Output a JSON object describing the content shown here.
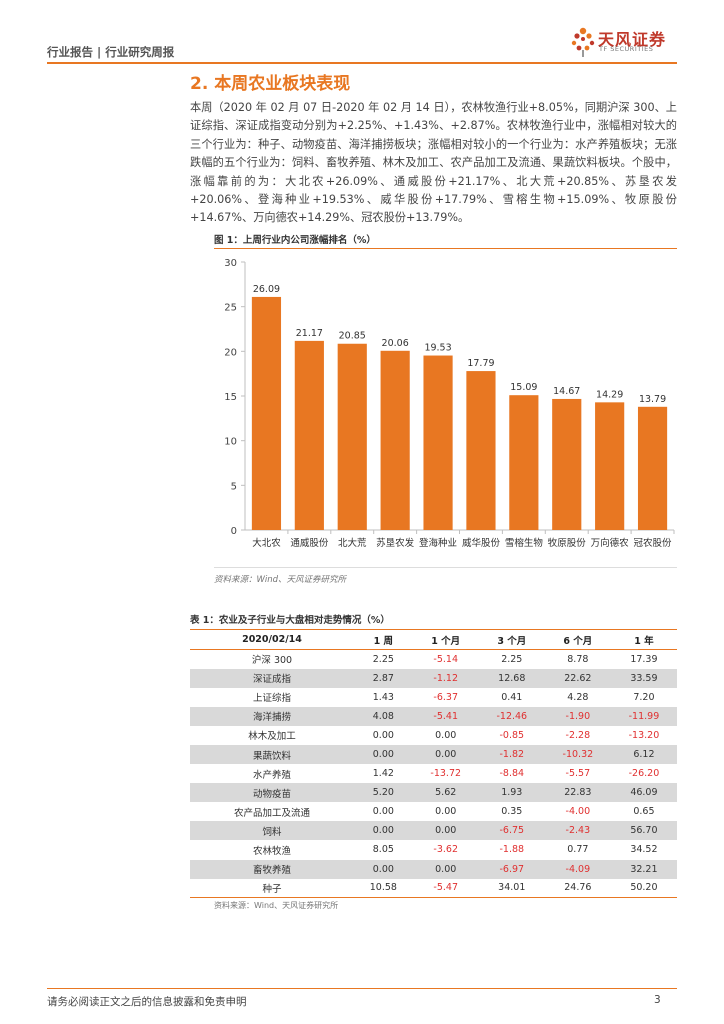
{
  "header": {
    "report_type": "行业报告 | 行业研究周报",
    "logo_cn": "天风证券",
    "logo_en": "TF SECURITIES"
  },
  "section_title": "2. 本周农业板块表现",
  "paragraph": "本周（2020 年 02 月 07 日-2020 年 02 月 14 日），农林牧渔行业+8.05%，同期沪深 300、上证综指、深证成指变动分别为+2.25%、+1.43%、+2.87%。农林牧渔行业中，涨幅相对较大的三个行业为：种子、动物疫苗、海洋捕捞板块；涨幅相对较小的一个行业为：水产养殖板块；无涨跌幅的五个行业为：饲料、畜牧养殖、林木及加工、农产品加工及流通、果蔬饮料板块。个股中，涨幅靠前的为：大北农+26.09%、通威股份+21.17%、北大荒+20.85%、苏垦农发+20.06%、登海种业+19.53%、威华股份+17.79%、雪榕生物+15.09%、牧原股份+14.67%、万向德农+14.29%、冠农股份+13.79%。",
  "figure": {
    "title": "图 1：上周行业内公司涨幅排名（%）",
    "source": "资料来源：Wind、天风证券研究所"
  },
  "chart_data": {
    "type": "bar",
    "title": "图 1：上周行业内公司涨幅排名（%）",
    "categories": [
      "大北农",
      "通威股份",
      "北大荒",
      "苏垦农发",
      "登海种业",
      "威华股份",
      "雪榕生物",
      "牧原股份",
      "万向德农",
      "冠农股份"
    ],
    "values": [
      26.09,
      21.17,
      20.85,
      20.06,
      19.53,
      17.79,
      15.09,
      14.67,
      14.29,
      13.79
    ],
    "value_labels": [
      "26.09",
      "21.17",
      "20.85",
      "20.06",
      "19.53",
      "17.79",
      "15.09",
      "14.67",
      "14.29",
      "13.79"
    ],
    "yticks": [
      "0",
      "5",
      "10",
      "15",
      "20",
      "25",
      "30"
    ],
    "ylim": [
      0,
      30
    ],
    "bar_color": "#e87722",
    "grid": false,
    "legend": "none"
  },
  "table": {
    "title": "表 1：农业及子行业与大盘相对走势情况（%）",
    "headers": [
      "2020/02/14",
      "1 周",
      "1 个月",
      "3 个月",
      "6 个月",
      "1 年"
    ],
    "rows": [
      [
        "沪深 300",
        "2.25",
        "-5.14",
        "2.25",
        "8.78",
        "17.39"
      ],
      [
        "深证成指",
        "2.87",
        "-1.12",
        "12.68",
        "22.62",
        "33.59"
      ],
      [
        "上证综指",
        "1.43",
        "-6.37",
        "0.41",
        "4.28",
        "7.20"
      ],
      [
        "海洋捕捞",
        "4.08",
        "-5.41",
        "-12.46",
        "-1.90",
        "-11.99"
      ],
      [
        "林木及加工",
        "0.00",
        "0.00",
        "-0.85",
        "-2.28",
        "-13.20"
      ],
      [
        "果蔬饮料",
        "0.00",
        "0.00",
        "-1.82",
        "-10.32",
        "6.12"
      ],
      [
        "水产养殖",
        "1.42",
        "-13.72",
        "-8.84",
        "-5.57",
        "-26.20"
      ],
      [
        "动物疫苗",
        "5.20",
        "5.62",
        "1.93",
        "22.83",
        "46.09"
      ],
      [
        "农产品加工及流通",
        "0.00",
        "0.00",
        "0.35",
        "-4.00",
        "0.65"
      ],
      [
        "饲料",
        "0.00",
        "0.00",
        "-6.75",
        "-2.43",
        "56.70"
      ],
      [
        "农林牧渔",
        "8.05",
        "-3.62",
        "-1.88",
        "0.77",
        "34.52"
      ],
      [
        "畜牧养殖",
        "0.00",
        "0.00",
        "-6.97",
        "-4.09",
        "32.21"
      ],
      [
        "种子",
        "10.58",
        "-5.47",
        "34.01",
        "24.76",
        "50.20"
      ]
    ],
    "source": "资料来源：Wind、天风证券研究所"
  },
  "footer": {
    "disclaimer": "请务必阅读正文之后的信息披露和免责申明",
    "page_number": "3"
  }
}
